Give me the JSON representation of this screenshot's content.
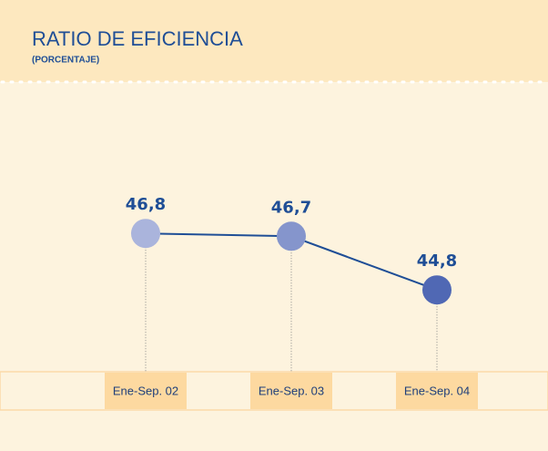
{
  "chart_data": {
    "type": "line",
    "title": "RATIO DE EFICIENCIA",
    "subtitle": "(PORCENTAJE)",
    "categories": [
      "Ene-Sep. 02",
      "Ene-Sep. 03",
      "Ene-Sep. 04"
    ],
    "series": [
      {
        "color": "#1f4e96",
        "point_colors": [
          "#aab4dc",
          "#8595cc",
          "#5068b4"
        ],
        "values": [
          46.8,
          46.7,
          44.8
        ],
        "value_labels": [
          "46,8",
          "46,7",
          "44,8"
        ]
      }
    ],
    "ylim": [
      42,
      52
    ]
  }
}
